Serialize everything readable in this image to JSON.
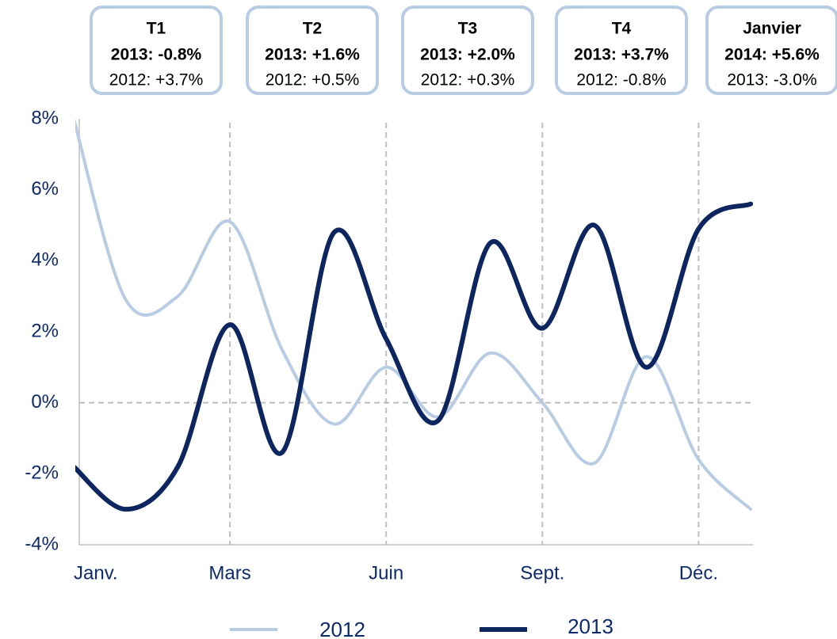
{
  "chart_data": {
    "type": "line",
    "categories": [
      "Janv.",
      null,
      null,
      "Mars",
      null,
      null,
      "Juin",
      null,
      null,
      "Sept.",
      null,
      null,
      "Déc.",
      null
    ],
    "series": [
      {
        "name": "2012",
        "color": "#b8cce4",
        "width": 4,
        "values": [
          8,
          2.9,
          3.0,
          5.1,
          1.5,
          -0.6,
          1.0,
          -0.4,
          1.4,
          0,
          -1.7,
          1.3,
          -1.6,
          -3.0
        ]
      },
      {
        "name": "2013",
        "color": "#0d2660",
        "width": 6,
        "values": [
          -1.8,
          -3.0,
          -1.8,
          2.2,
          -1.4,
          4.8,
          1.8,
          -0.5,
          4.5,
          2.1,
          5.0,
          1.0,
          4.9,
          5.6
        ]
      }
    ],
    "ylim": [
      -4,
      8
    ],
    "yticks": [
      {
        "value": -4,
        "label": "-4%"
      },
      {
        "value": -2,
        "label": "-2%"
      },
      {
        "value": 0,
        "label": "0%"
      },
      {
        "value": 2,
        "label": "2%"
      },
      {
        "value": 4,
        "label": "4%"
      },
      {
        "value": 6,
        "label": "6%"
      },
      {
        "value": 8,
        "label": "8%"
      }
    ],
    "zero_line": true,
    "annotations": [
      {
        "title": "T1",
        "line1": "2013: -0.8%",
        "line2": "2012: +3.7%"
      },
      {
        "title": "T2",
        "line1": "2013: +1.6%",
        "line2": "2012: +0.5%"
      },
      {
        "title": "T3",
        "line1": "2013: +2.0%",
        "line2": "2012: +0.3%"
      },
      {
        "title": "T4",
        "line1": "2013: +3.7%",
        "line2": "2012: -0.8%"
      },
      {
        "title": "Janvier",
        "line1": "2014: +5.6%",
        "line2": "2013: -3.0%"
      }
    ]
  }
}
